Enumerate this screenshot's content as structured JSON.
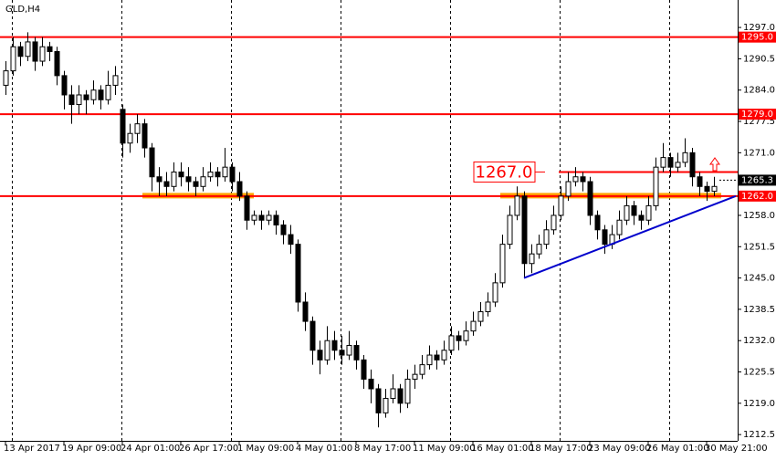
{
  "chart_data": {
    "type": "candlestick",
    "title": "GLD,H4",
    "categories": [
      "13 Apr 2017",
      null,
      null,
      null,
      null,
      null,
      null,
      null,
      "19 Apr 09:00",
      null,
      null,
      null,
      null,
      null,
      null,
      null,
      "24 Apr 01:00",
      null,
      null,
      null,
      null,
      null,
      null,
      null,
      "26 Apr 17:00",
      null,
      null,
      null,
      null,
      null,
      null,
      null,
      "1 May 09:00",
      null,
      null,
      null,
      null,
      null,
      null,
      null,
      "4 May 01:00",
      null,
      null,
      null,
      null,
      null,
      null,
      null,
      "8 May 17:00",
      null,
      null,
      null,
      null,
      null,
      null,
      null,
      "11 May 09:00",
      null,
      null,
      null,
      null,
      null,
      null,
      null,
      "16 May 01:00",
      null,
      null,
      null,
      null,
      null,
      null,
      null,
      "18 May 17:00",
      null,
      null,
      null,
      null,
      null,
      null,
      null,
      "23 May 09:00",
      null,
      null,
      null,
      null,
      null,
      null,
      null,
      "26 May 01:00",
      null,
      null,
      null,
      null,
      null,
      null,
      null,
      "30 May 21:00",
      null
    ],
    "candles": [
      [
        1285,
        1290,
        1283,
        1288
      ],
      [
        1288,
        1295,
        1287,
        1293
      ],
      [
        1293,
        1294,
        1289,
        1291
      ],
      [
        1291,
        1296,
        1290,
        1294
      ],
      [
        1294,
        1295,
        1288,
        1290
      ],
      [
        1290,
        1295,
        1289,
        1293
      ],
      [
        1293,
        1294,
        1290,
        1292
      ],
      [
        1292,
        1293,
        1285,
        1287
      ],
      [
        1287,
        1288,
        1280,
        1283
      ],
      [
        1283,
        1285,
        1277,
        1281
      ],
      [
        1281,
        1285,
        1279,
        1283
      ],
      [
        1283,
        1284,
        1279,
        1282
      ],
      [
        1282,
        1286,
        1281,
        1284
      ],
      [
        1284,
        1285,
        1280,
        1282
      ],
      [
        1282,
        1288,
        1281,
        1285
      ],
      [
        1285,
        1289,
        1283,
        1287
      ],
      [
        1280,
        1281,
        1270,
        1273
      ],
      [
        1273,
        1277,
        1271,
        1275
      ],
      [
        1275,
        1279,
        1273,
        1277
      ],
      [
        1277,
        1278,
        1270,
        1272
      ],
      [
        1272,
        1273,
        1263,
        1266
      ],
      [
        1266,
        1268,
        1262,
        1265
      ],
      [
        1265,
        1267,
        1262,
        1264
      ],
      [
        1264,
        1269,
        1263,
        1267
      ],
      [
        1267,
        1269,
        1264,
        1266
      ],
      [
        1266,
        1268,
        1263,
        1265
      ],
      [
        1265,
        1266,
        1262,
        1264
      ],
      [
        1264,
        1268,
        1263,
        1266
      ],
      [
        1266,
        1269,
        1265,
        1267
      ],
      [
        1267,
        1268,
        1264,
        1266
      ],
      [
        1266,
        1272,
        1265,
        1268
      ],
      [
        1268,
        1269,
        1263,
        1265
      ],
      [
        1265,
        1267,
        1261,
        1262
      ],
      [
        1262,
        1263,
        1255,
        1257
      ],
      [
        1257,
        1259,
        1256,
        1258
      ],
      [
        1258,
        1259,
        1255,
        1257
      ],
      [
        1257,
        1259,
        1256,
        1258
      ],
      [
        1258,
        1259,
        1254,
        1256
      ],
      [
        1256,
        1257,
        1252,
        1254
      ],
      [
        1254,
        1256,
        1250,
        1252
      ],
      [
        1252,
        1253,
        1238,
        1240
      ],
      [
        1240,
        1242,
        1234,
        1236
      ],
      [
        1236,
        1237,
        1227,
        1230
      ],
      [
        1230,
        1232,
        1225,
        1228
      ],
      [
        1228,
        1235,
        1227,
        1232
      ],
      [
        1232,
        1234,
        1228,
        1230
      ],
      [
        1230,
        1233,
        1227,
        1229
      ],
      [
        1229,
        1234,
        1228,
        1231
      ],
      [
        1231,
        1232,
        1226,
        1228
      ],
      [
        1228,
        1229,
        1222,
        1224
      ],
      [
        1224,
        1226,
        1219,
        1222
      ],
      [
        1222,
        1223,
        1214,
        1217
      ],
      [
        1217,
        1222,
        1216,
        1220
      ],
      [
        1220,
        1225,
        1219,
        1222
      ],
      [
        1222,
        1223,
        1217,
        1219
      ],
      [
        1219,
        1226,
        1218,
        1224
      ],
      [
        1224,
        1227,
        1222,
        1225
      ],
      [
        1225,
        1229,
        1224,
        1227
      ],
      [
        1227,
        1231,
        1226,
        1229
      ],
      [
        1229,
        1230,
        1226,
        1228
      ],
      [
        1228,
        1232,
        1227,
        1230
      ],
      [
        1230,
        1235,
        1229,
        1233
      ],
      [
        1233,
        1234,
        1230,
        1232
      ],
      [
        1232,
        1236,
        1231,
        1234
      ],
      [
        1234,
        1238,
        1233,
        1236
      ],
      [
        1236,
        1240,
        1235,
        1238
      ],
      [
        1238,
        1242,
        1237,
        1240
      ],
      [
        1240,
        1246,
        1239,
        1244
      ],
      [
        1244,
        1254,
        1243,
        1252
      ],
      [
        1252,
        1260,
        1251,
        1258
      ],
      [
        1258,
        1264,
        1257,
        1262
      ],
      [
        1262,
        1263,
        1245,
        1248
      ],
      [
        1248,
        1252,
        1246,
        1250
      ],
      [
        1250,
        1254,
        1249,
        1252
      ],
      [
        1252,
        1257,
        1251,
        1255
      ],
      [
        1255,
        1260,
        1254,
        1258
      ],
      [
        1258,
        1264,
        1257,
        1262
      ],
      [
        1262,
        1267,
        1261,
        1265
      ],
      [
        1265,
        1268,
        1264,
        1266
      ],
      [
        1266,
        1267,
        1263,
        1265
      ],
      [
        1265,
        1266,
        1256,
        1258
      ],
      [
        1258,
        1259,
        1253,
        1255
      ],
      [
        1255,
        1256,
        1250,
        1252
      ],
      [
        1252,
        1256,
        1251,
        1254
      ],
      [
        1254,
        1259,
        1253,
        1257
      ],
      [
        1257,
        1262,
        1256,
        1260
      ],
      [
        1260,
        1261,
        1256,
        1258
      ],
      [
        1258,
        1259,
        1255,
        1257
      ],
      [
        1257,
        1262,
        1256,
        1260
      ],
      [
        1260,
        1270,
        1259,
        1268
      ],
      [
        1268,
        1273,
        1267,
        1270
      ],
      [
        1270,
        1271,
        1266,
        1268
      ],
      [
        1268,
        1271,
        1267,
        1269
      ],
      [
        1269,
        1274,
        1268,
        1271
      ],
      [
        1271,
        1272,
        1264,
        1266
      ],
      [
        1266,
        1267,
        1262,
        1264
      ],
      [
        1264,
        1265,
        1261,
        1263
      ],
      [
        1263,
        1266,
        1262,
        1264
      ]
    ],
    "ylim": [
      1211.2,
      1302.7
    ],
    "yticks": [
      {
        "value": 1297,
        "label": "1297.0"
      },
      1290.5,
      {
        "value": 1284,
        "label": "1284.0"
      },
      1277.5,
      {
        "value": 1271,
        "label": "1271.0"
      },
      {
        "value": 1258,
        "label": "1258.0"
      },
      1251.5,
      {
        "value": 1245,
        "label": "1245.0"
      },
      1238.5,
      {
        "value": 1232,
        "label": "1232.0"
      },
      1225.5,
      {
        "value": 1219,
        "label": "1219.0"
      },
      1212.5
    ],
    "levels": [
      {
        "value": 1295,
        "label": "1295.0",
        "color": "#ff0000"
      },
      {
        "value": 1279,
        "label": "1279.0",
        "color": "#ff0000"
      },
      {
        "value": 1262,
        "label": "1262.0",
        "color": "#ff0000"
      }
    ],
    "current_price": {
      "value": 1265.3,
      "label": "1265.3"
    },
    "annotation": {
      "value": 1267,
      "label": "1267.0",
      "color": "#ff0000",
      "start_index": 76
    },
    "zones": [
      {
        "value": 1262,
        "from": 19,
        "to": 34,
        "color": "#ffa500"
      },
      {
        "value": 1262,
        "from": 68,
        "to": 98,
        "color": "#ffa500"
      }
    ],
    "trendline": {
      "start_index": 71,
      "start": 1245,
      "end_index": 100,
      "end": 1262,
      "color": "#0000cc"
    },
    "grid": true
  }
}
